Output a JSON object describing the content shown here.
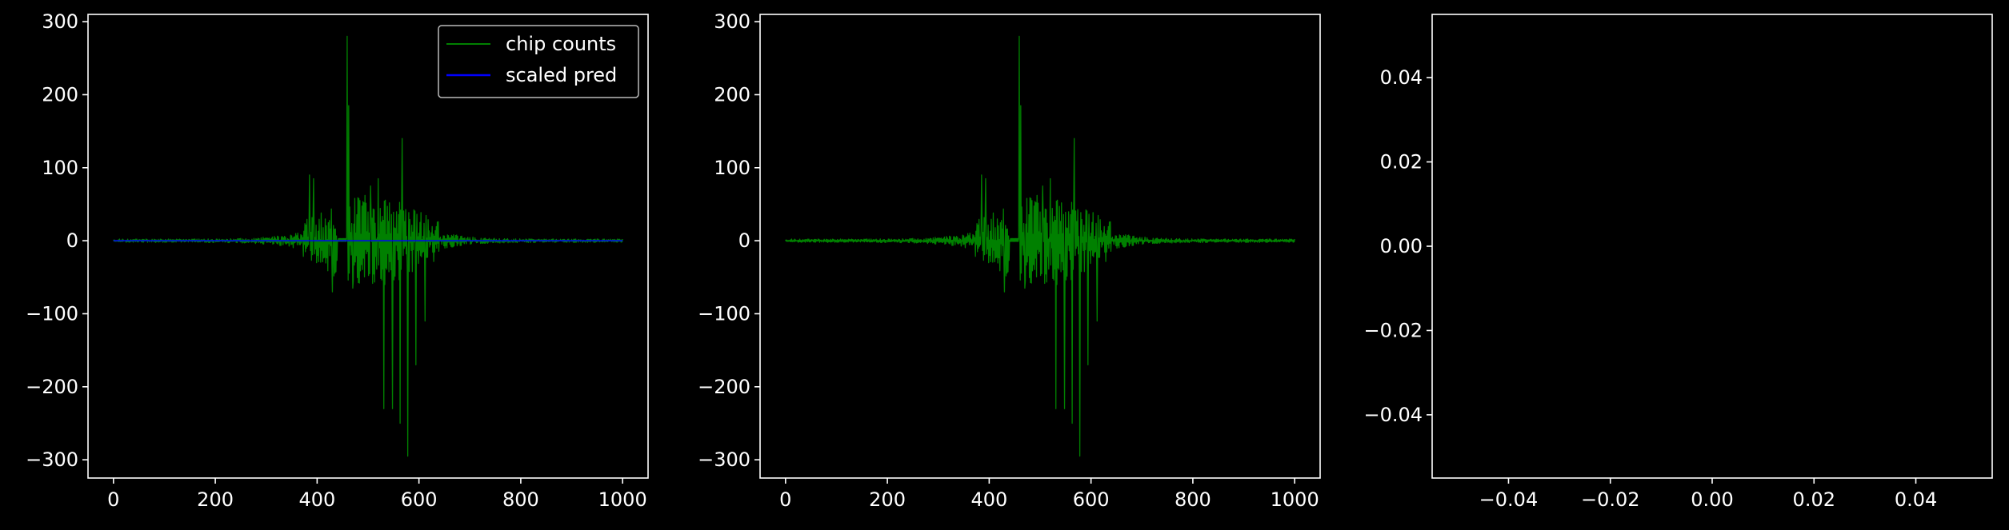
{
  "figure": {
    "background": "#000000",
    "axes_color": "#ffffff"
  },
  "chart_data": [
    {
      "type": "line",
      "title": "",
      "xlabel": "",
      "ylabel": "",
      "xlim": [
        -50,
        1050
      ],
      "ylim": [
        -325,
        310
      ],
      "xticks": [
        0,
        200,
        400,
        600,
        800,
        1000
      ],
      "xtick_labels": [
        "0",
        "200",
        "400",
        "600",
        "800",
        "1000"
      ],
      "yticks": [
        -300,
        -200,
        -100,
        0,
        100,
        200,
        300
      ],
      "ytick_labels": [
        "−300",
        "−200",
        "−100",
        "0",
        "100",
        "200",
        "300"
      ],
      "grid": false,
      "legend": {
        "placement": "top-right",
        "entries": [
          {
            "label": "chip counts",
            "color": "#008000"
          },
          {
            "label": "scaled pred",
            "color": "#0000ff"
          }
        ]
      },
      "series": [
        {
          "name": "chip counts",
          "color": "#008000",
          "x_range": [
            0,
            1000
          ],
          "points": 1001,
          "peaks": [
            {
              "x": 385,
              "y": 90
            },
            {
              "x": 393,
              "y": 85
            },
            {
              "x": 459,
              "y": 280
            },
            {
              "x": 462,
              "y": 185
            },
            {
              "x": 470,
              "y": 110
            },
            {
              "x": 505,
              "y": 75
            },
            {
              "x": 520,
              "y": 85
            },
            {
              "x": 567,
              "y": 140
            },
            {
              "x": 430,
              "y": -70
            },
            {
              "x": 470,
              "y": -65
            },
            {
              "x": 531,
              "y": -230
            },
            {
              "x": 548,
              "y": -230
            },
            {
              "x": 563,
              "y": -250
            },
            {
              "x": 578,
              "y": -295
            },
            {
              "x": 594,
              "y": -170
            },
            {
              "x": 612,
              "y": -110
            }
          ]
        },
        {
          "name": "scaled pred",
          "color": "#0000ff",
          "x_range": [
            0,
            1000
          ],
          "points": 1001,
          "values_note": "all zero"
        }
      ]
    },
    {
      "type": "line",
      "title": "",
      "xlabel": "",
      "ylabel": "",
      "xlim": [
        -50,
        1050
      ],
      "ylim": [
        -325,
        310
      ],
      "xticks": [
        0,
        200,
        400,
        600,
        800,
        1000
      ],
      "xtick_labels": [
        "0",
        "200",
        "400",
        "600",
        "800",
        "1000"
      ],
      "yticks": [
        -300,
        -200,
        -100,
        0,
        100,
        200,
        300
      ],
      "ytick_labels": [
        "−300",
        "−200",
        "−100",
        "0",
        "100",
        "200",
        "300"
      ],
      "grid": false,
      "series": [
        {
          "color": "#008000",
          "x_range": [
            0,
            1000
          ],
          "points": 1001,
          "peaks": [
            {
              "x": 385,
              "y": 90
            },
            {
              "x": 393,
              "y": 85
            },
            {
              "x": 459,
              "y": 280
            },
            {
              "x": 462,
              "y": 185
            },
            {
              "x": 470,
              "y": 110
            },
            {
              "x": 505,
              "y": 75
            },
            {
              "x": 520,
              "y": 85
            },
            {
              "x": 567,
              "y": 140
            },
            {
              "x": 430,
              "y": -70
            },
            {
              "x": 470,
              "y": -65
            },
            {
              "x": 531,
              "y": -230
            },
            {
              "x": 548,
              "y": -230
            },
            {
              "x": 563,
              "y": -250
            },
            {
              "x": 578,
              "y": -295
            },
            {
              "x": 594,
              "y": -170
            },
            {
              "x": 612,
              "y": -110
            }
          ]
        }
      ]
    },
    {
      "type": "line",
      "title": "",
      "xlabel": "",
      "ylabel": "",
      "xlim": [
        -0.055,
        0.055
      ],
      "ylim": [
        -0.055,
        0.055
      ],
      "xticks": [
        -0.04,
        -0.02,
        0.0,
        0.02,
        0.04
      ],
      "xtick_labels": [
        "−0.04",
        "−0.02",
        "0.00",
        "0.02",
        "0.04"
      ],
      "yticks": [
        -0.04,
        -0.02,
        0.0,
        0.02,
        0.04
      ],
      "ytick_labels": [
        "−0.04",
        "−0.02",
        "0.00",
        "0.02",
        "0.04"
      ],
      "grid": false,
      "series": []
    }
  ]
}
